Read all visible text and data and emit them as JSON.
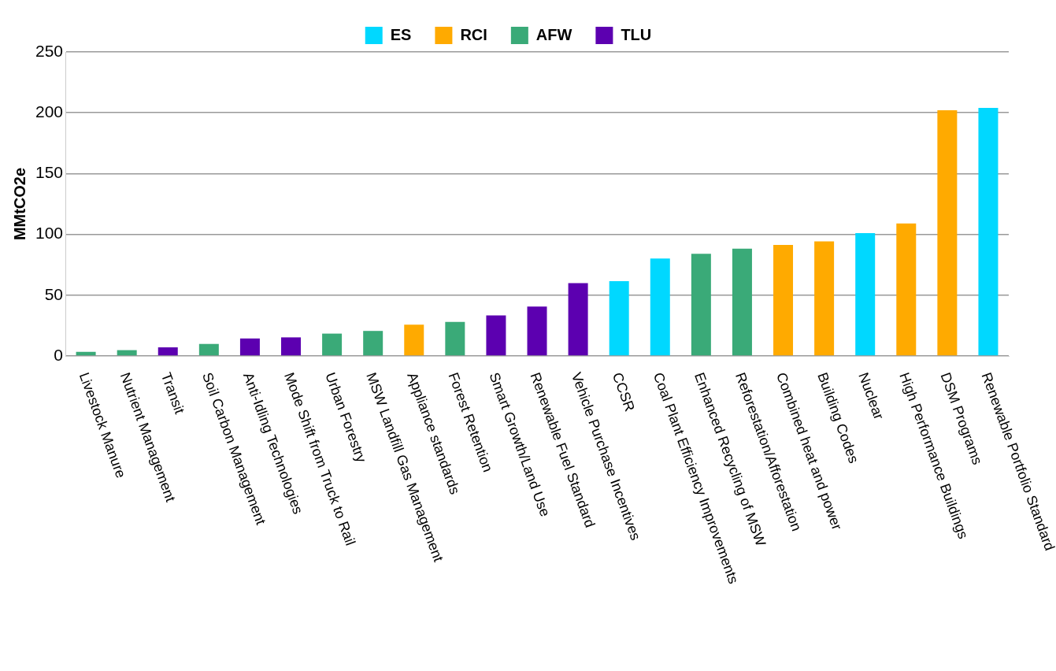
{
  "chart_data": {
    "type": "bar",
    "ylabel": "MMtCO2e",
    "categories": [
      "Livestock Manure",
      "Nutrient Management",
      "Transit",
      "Soil Carbon Management",
      "Anti-Idling Technologies",
      "Mode Shift from Truck to Rail",
      "Urban Forestry",
      "MSW Landfill Gas Management",
      "Appliance standards",
      "Forest Retention",
      "Smart Growth/Land Use",
      "Renewable Fuel Standard",
      "Vehicle Purchase Incentives",
      "CCSR",
      "Coal Plant Efficiency Improvements",
      "Enhanced Recycling of MSW",
      "Reforestation/Afforestation",
      "Combined heat and power",
      "Building Codes",
      "Nuclear",
      "High Performance Buildings",
      "DSM Programs",
      "Renewable Portfolio Standard"
    ],
    "series": [
      {
        "name": "ES",
        "color": "#00d8ff",
        "values": [
          null,
          null,
          null,
          null,
          null,
          null,
          null,
          null,
          null,
          null,
          null,
          null,
          null,
          61.5,
          80.2,
          null,
          null,
          null,
          null,
          101,
          null,
          null,
          204
        ]
      },
      {
        "name": "RCI",
        "color": "#ffaa00",
        "values": [
          null,
          null,
          null,
          null,
          null,
          null,
          null,
          null,
          25.7,
          null,
          null,
          null,
          null,
          null,
          null,
          null,
          null,
          91.3,
          94.3,
          null,
          108.9,
          202,
          null
        ]
      },
      {
        "name": "AFW",
        "color": "#3aaa78",
        "values": [
          3.4,
          4.8,
          null,
          9.9,
          null,
          null,
          18.4,
          20.6,
          null,
          28,
          null,
          null,
          null,
          null,
          null,
          84,
          88.3,
          null,
          null,
          null,
          null,
          null,
          null
        ]
      },
      {
        "name": "TLU",
        "color": "#5c00b0",
        "values": [
          null,
          null,
          7.1,
          null,
          14.4,
          15.3,
          null,
          null,
          null,
          null,
          33.3,
          40.7,
          59.9,
          null,
          null,
          null,
          null,
          null,
          null,
          null,
          null,
          null,
          null
        ]
      }
    ],
    "ylim": [
      0,
      250
    ],
    "yticks": [
      0,
      50,
      100,
      150,
      200,
      250
    ],
    "grid": "y",
    "legend": "top"
  }
}
